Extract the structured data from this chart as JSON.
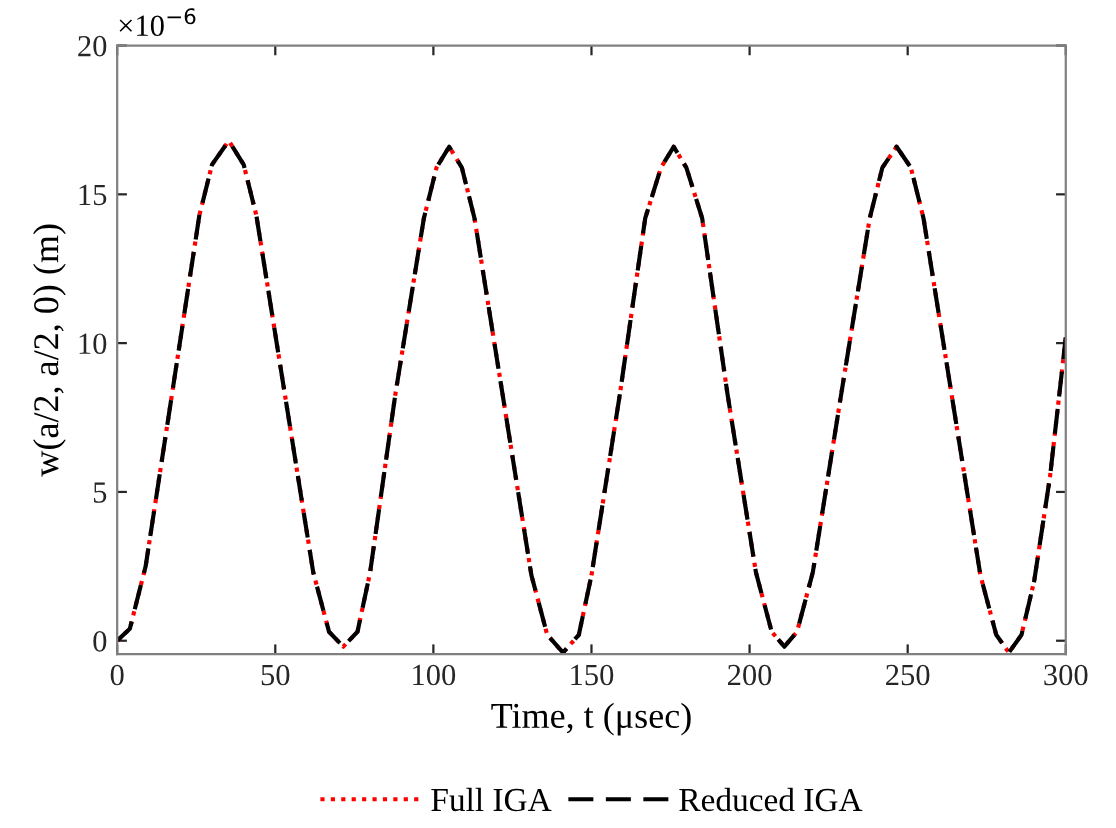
{
  "chart_data": {
    "type": "line",
    "xlabel": "Time, t (μsec)",
    "ylabel": "w(a/2, a/2, 0) (m)",
    "annotations": [
      "×10$^{−6}$"
    ],
    "xlim": [
      0,
      300
    ],
    "ylim": [
      -0.45,
      20
    ],
    "xticks": [
      0,
      50,
      100,
      150,
      200,
      250,
      300
    ],
    "yticks": [
      0,
      5,
      10,
      15,
      20
    ],
    "grid": false,
    "legend": "bottom",
    "marker": "none",
    "x": [
      0,
      4,
      9,
      17.5,
      26,
      30,
      35.3,
      40,
      44,
      53,
      62,
      67,
      71.5,
      76,
      80,
      88,
      97,
      101,
      105,
      109,
      113,
      122,
      131,
      136,
      141,
      146,
      150,
      159,
      167,
      172,
      176,
      180,
      185,
      193,
      202,
      207,
      211,
      215,
      220,
      229,
      238,
      242,
      246.5,
      251,
      255,
      264,
      273,
      278,
      282,
      286,
      290,
      295,
      300
    ],
    "series": [
      {
        "name": "Full IGA",
        "color": "#ff0000",
        "line_style": "dotted",
        "values": [
          0,
          0.4,
          2.5,
          8.4,
          14.3,
          16.0,
          16.8,
          16.0,
          14.3,
          8.3,
          2.3,
          0.3,
          -0.2,
          0.3,
          2.3,
          8.3,
          14.2,
          15.9,
          16.6,
          15.9,
          14.2,
          8.2,
          2.2,
          0.2,
          -0.4,
          0.2,
          2.2,
          8.3,
          14.2,
          15.9,
          16.6,
          15.9,
          14.2,
          8.3,
          2.3,
          0.3,
          -0.2,
          0.3,
          2.3,
          8.3,
          14.2,
          15.9,
          16.6,
          15.9,
          14.2,
          8.2,
          2.2,
          0.2,
          -0.4,
          0.2,
          2.0,
          5.5,
          10.2
        ]
      },
      {
        "name": "Reduced IGA",
        "color": "#000000",
        "line_style": "dashed",
        "values": [
          0,
          0.4,
          2.5,
          8.4,
          14.3,
          16.0,
          16.8,
          16.0,
          14.3,
          8.3,
          2.3,
          0.3,
          -0.2,
          0.3,
          2.3,
          8.3,
          14.2,
          15.9,
          16.6,
          15.9,
          14.2,
          8.2,
          2.2,
          0.2,
          -0.4,
          0.2,
          2.2,
          8.3,
          14.2,
          15.9,
          16.6,
          15.9,
          14.2,
          8.3,
          2.3,
          0.3,
          -0.2,
          0.3,
          2.3,
          8.3,
          14.2,
          15.9,
          16.6,
          15.9,
          14.2,
          8.2,
          2.2,
          0.2,
          -0.4,
          0.2,
          2.0,
          5.5,
          10.2
        ]
      }
    ]
  }
}
